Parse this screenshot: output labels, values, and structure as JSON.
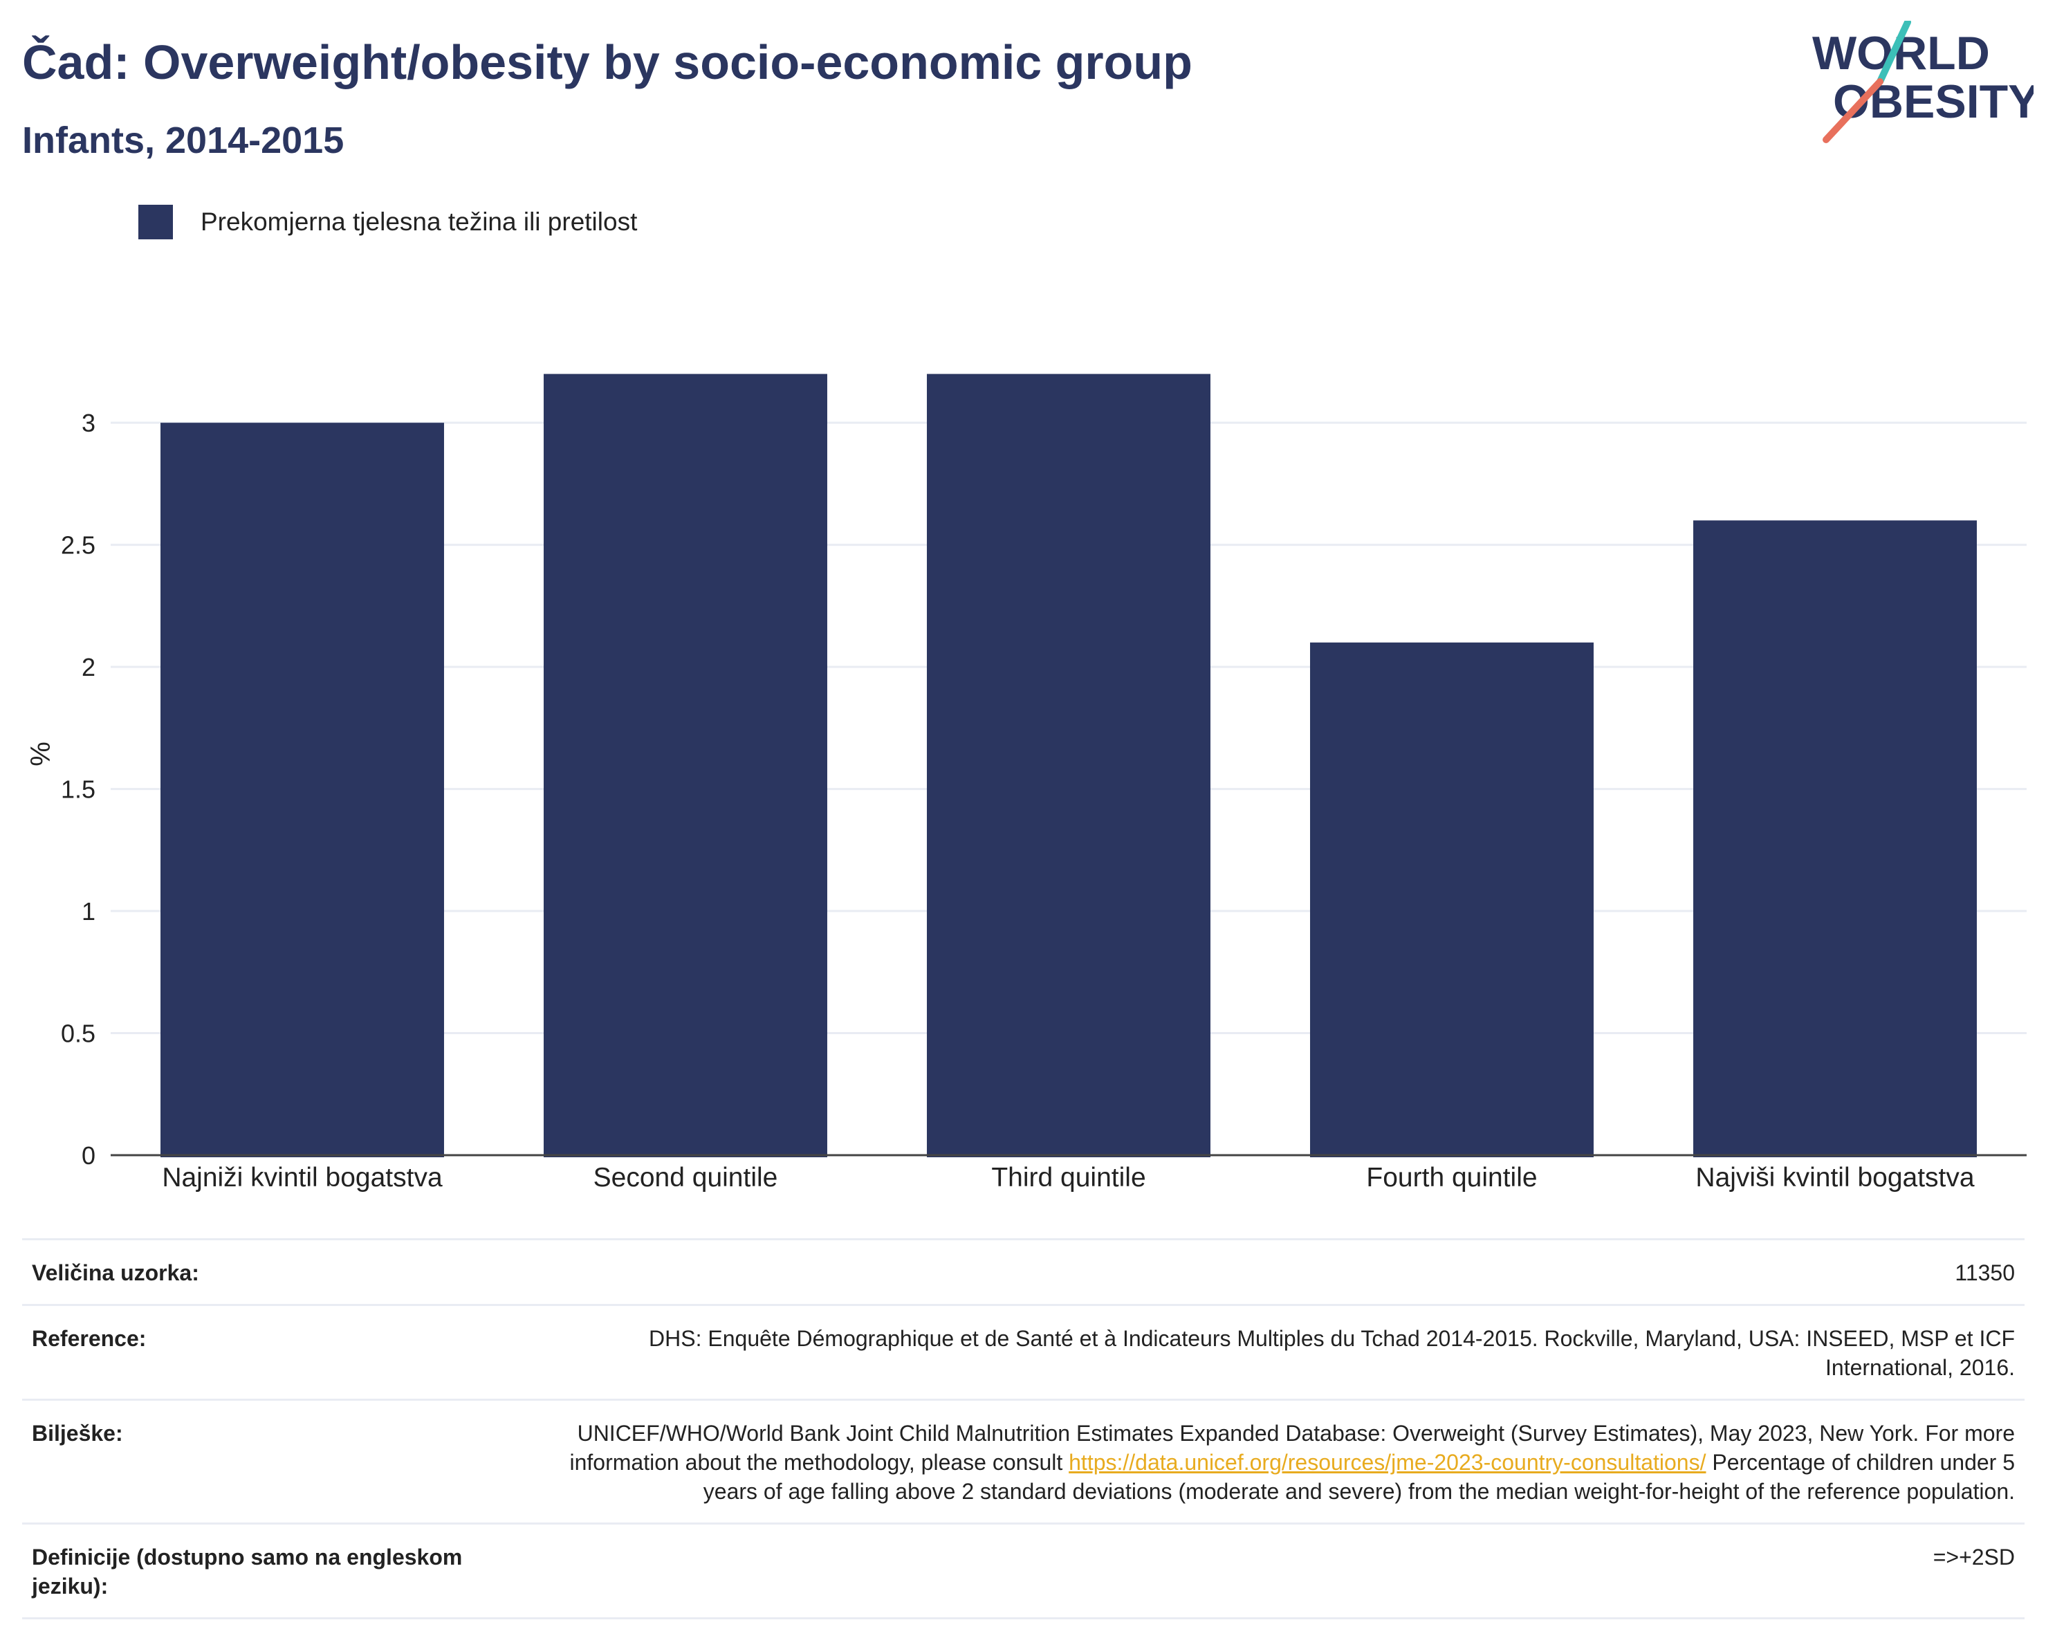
{
  "header": {
    "title": "Čad: Overweight/obesity by socio-economic group",
    "subtitle": "Infants, 2014-2015"
  },
  "logo": {
    "line1": "WORLD",
    "line2": "OBESITY",
    "accent_teal": "#3cbfb8",
    "accent_coral": "#e8705c"
  },
  "colors": {
    "bar": "#2b3660",
    "grid": "#e9ecf3",
    "axis": "#444444"
  },
  "chart_data": {
    "type": "bar",
    "categories": [
      "Najniži kvintil bogatstva",
      "Second quintile",
      "Third quintile",
      "Fourth quintile",
      "Najviši kvintil bogatstva"
    ],
    "series": [
      {
        "name": "Prekomjerna tjelesna težina ili pretilost",
        "values": [
          3.0,
          3.2,
          3.2,
          2.1,
          2.6
        ]
      }
    ],
    "ylabel": "%",
    "ylim": [
      0,
      3.4
    ],
    "yticks": [
      0,
      0.5,
      1,
      1.5,
      2,
      2.5,
      3
    ],
    "ytick_labels": [
      "0",
      "0.5",
      "1",
      "1.5",
      "2",
      "2.5",
      "3"
    ],
    "grid": true,
    "legend_position": "top-left"
  },
  "info": {
    "sample_label": "Veličina uzorka:",
    "sample_value": "11350",
    "reference_label": "Reference:",
    "reference_value": "DHS: Enquête Démographique et de Santé et à Indicateurs Multiples du Tchad 2014-2015. Rockville, Maryland, USA: INSEED, MSP et ICF International, 2016.",
    "notes_label": "Bilješke:",
    "notes_text_1": "UNICEF/WHO/World Bank Joint Child Malnutrition Estimates Expanded Database: Overweight (Survey Estimates), May 2023, New York. For more information about the methodology, please consult ",
    "notes_link": "https://data.unicef.org/resources/jme-2023-country-consultations/",
    "notes_text_2": " Percentage of children under 5 years of age falling above 2 standard deviations (moderate and severe) from the median weight-for-height of the reference population.",
    "definitions_label": "Definicije (dostupno samo na engleskom jeziku):",
    "definitions_value": "=>+2SD"
  }
}
